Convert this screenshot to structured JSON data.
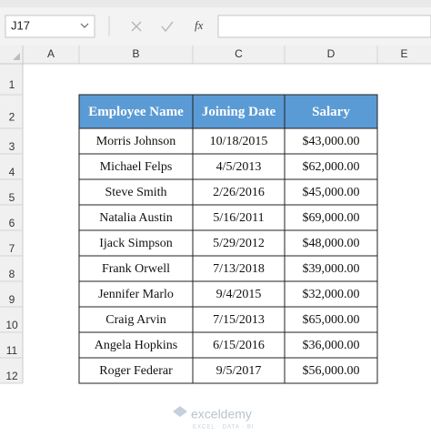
{
  "name_box": "J17",
  "formula_icon": "fx",
  "columns": [
    "A",
    "B",
    "C",
    "D",
    "E"
  ],
  "rows": [
    "1",
    "2",
    "3",
    "4",
    "5",
    "6",
    "7",
    "8",
    "9",
    "10",
    "11",
    "12"
  ],
  "table": {
    "header": [
      "Employee Name",
      "Joining Date",
      "Salary"
    ],
    "rows": [
      [
        "Morris Johnson",
        "10/18/2015",
        "$43,000.00"
      ],
      [
        "Michael Felps",
        "4/5/2013",
        "$62,000.00"
      ],
      [
        "Steve Smith",
        "2/26/2016",
        "$45,000.00"
      ],
      [
        "Natalia Austin",
        "5/16/2011",
        "$69,000.00"
      ],
      [
        "Ijack Simpson",
        "5/29/2012",
        "$48,000.00"
      ],
      [
        "Frank Orwell",
        "7/13/2018",
        "$39,000.00"
      ],
      [
        "Jennifer Marlo",
        "9/4/2015",
        "$32,000.00"
      ],
      [
        "Craig Arvin",
        "7/15/2013",
        "$65,000.00"
      ],
      [
        "Angela Hopkins",
        "6/15/2016",
        "$36,000.00"
      ],
      [
        "Roger Federar",
        "9/5/2017",
        "$56,000.00"
      ]
    ]
  },
  "watermark": {
    "brand": "exceldemy",
    "tagline": "EXCEL · DATA · BI"
  }
}
